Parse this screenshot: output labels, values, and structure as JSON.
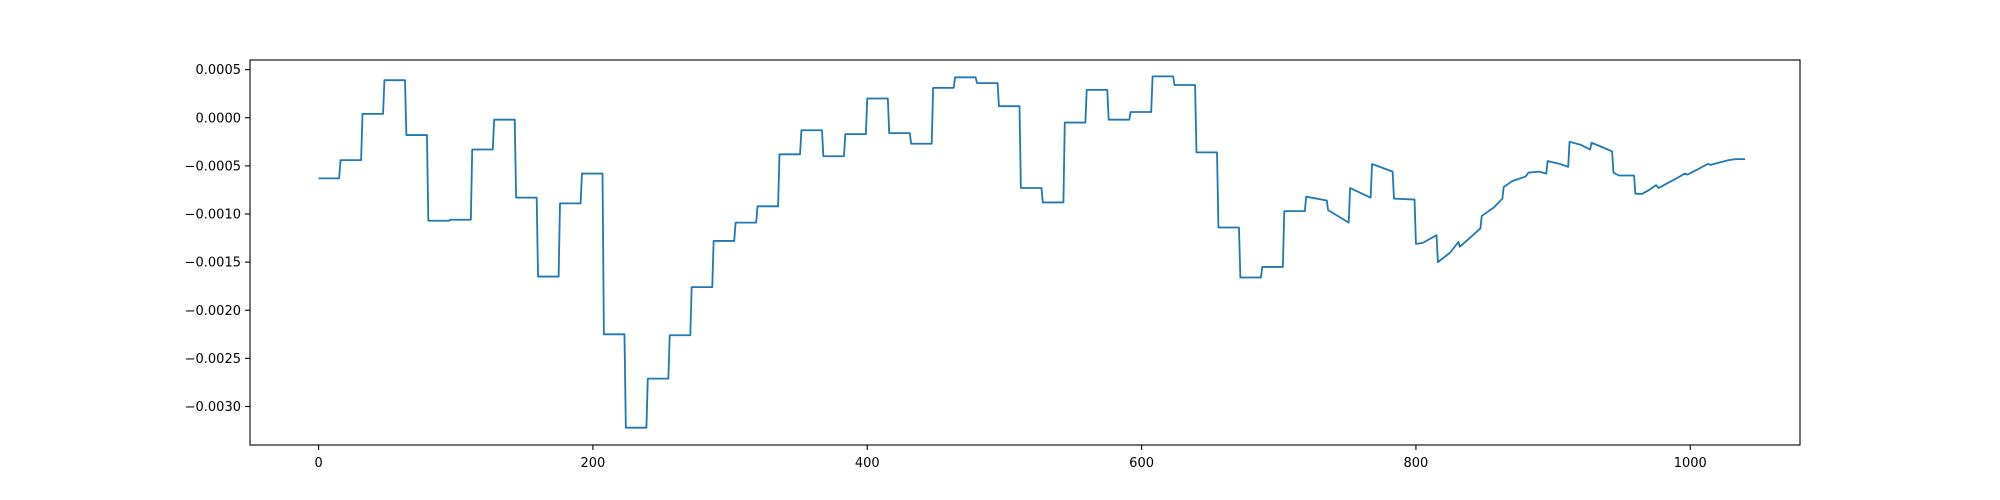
{
  "chart_data": {
    "type": "line",
    "title": "",
    "xlabel": "",
    "ylabel": "",
    "xlim": [
      -50,
      1080
    ],
    "ylim": [
      -0.0034,
      0.0006
    ],
    "xticks": [
      0,
      200,
      400,
      600,
      800,
      1000
    ],
    "xtick_labels": [
      "0",
      "200",
      "400",
      "600",
      "800",
      "1000"
    ],
    "yticks": [
      0.0005,
      0.0,
      -0.0005,
      -0.001,
      -0.0015,
      -0.002,
      -0.0025,
      -0.003
    ],
    "ytick_labels": [
      "0.0005",
      "0.0000",
      "−0.0005",
      "−0.0010",
      "−0.0015",
      "−0.0020",
      "−0.0025",
      "−0.0030"
    ],
    "grid": false,
    "series": [
      {
        "color": "#1f77b4",
        "points": [
          [
            0,
            -0.00063
          ],
          [
            15,
            -0.00063
          ],
          [
            16,
            -0.00044
          ],
          [
            31,
            -0.00044
          ],
          [
            32,
            4e-05
          ],
          [
            47,
            4e-05
          ],
          [
            48,
            0.00039
          ],
          [
            63,
            0.00039
          ],
          [
            64,
            -0.00018
          ],
          [
            79,
            -0.00018
          ],
          [
            80,
            -0.00107
          ],
          [
            95,
            -0.00107
          ],
          [
            96,
            -0.00106
          ],
          [
            111,
            -0.00106
          ],
          [
            112,
            -0.00033
          ],
          [
            127,
            -0.00033
          ],
          [
            128,
            -2e-05
          ],
          [
            143,
            -2e-05
          ],
          [
            144,
            -0.00083
          ],
          [
            159,
            -0.00083
          ],
          [
            160,
            -0.00165
          ],
          [
            175,
            -0.00165
          ],
          [
            176,
            -0.00089
          ],
          [
            191,
            -0.00089
          ],
          [
            192,
            -0.00058
          ],
          [
            207,
            -0.00058
          ],
          [
            208,
            -0.00225
          ],
          [
            223,
            -0.00225
          ],
          [
            224,
            -0.00322
          ],
          [
            239,
            -0.00322
          ],
          [
            240,
            -0.00271
          ],
          [
            255,
            -0.00271
          ],
          [
            256,
            -0.00226
          ],
          [
            271,
            -0.00226
          ],
          [
            272,
            -0.00176
          ],
          [
            287,
            -0.00176
          ],
          [
            288,
            -0.00128
          ],
          [
            303,
            -0.00128
          ],
          [
            304,
            -0.00109
          ],
          [
            319,
            -0.00109
          ],
          [
            320,
            -0.00092
          ],
          [
            335,
            -0.00092
          ],
          [
            336,
            -0.00038
          ],
          [
            351,
            -0.00038
          ],
          [
            352,
            -0.00013
          ],
          [
            367,
            -0.00013
          ],
          [
            368,
            -0.0004
          ],
          [
            383,
            -0.0004
          ],
          [
            384,
            -0.00017
          ],
          [
            399,
            -0.00017
          ],
          [
            400,
            0.0002
          ],
          [
            415,
            0.0002
          ],
          [
            416,
            -0.00016
          ],
          [
            431,
            -0.00016
          ],
          [
            432,
            -0.00027
          ],
          [
            447,
            -0.00027
          ],
          [
            448,
            0.00031
          ],
          [
            463,
            0.00031
          ],
          [
            464,
            0.00042
          ],
          [
            479,
            0.00042
          ],
          [
            480,
            0.00036
          ],
          [
            495,
            0.00036
          ],
          [
            496,
            0.00012
          ],
          [
            511,
            0.00012
          ],
          [
            512,
            -0.00073
          ],
          [
            527,
            -0.00073
          ],
          [
            528,
            -0.00088
          ],
          [
            543,
            -0.00088
          ],
          [
            544,
            -5e-05
          ],
          [
            559,
            -5e-05
          ],
          [
            560,
            0.00029
          ],
          [
            575,
            0.00029
          ],
          [
            576,
            -2e-05
          ],
          [
            591,
            -2e-05
          ],
          [
            592,
            6e-05
          ],
          [
            607,
            6e-05
          ],
          [
            608,
            0.00043
          ],
          [
            623,
            0.00043
          ],
          [
            624,
            0.00034
          ],
          [
            639,
            0.00034
          ],
          [
            640,
            -0.00036
          ],
          [
            655,
            -0.00036
          ],
          [
            656,
            -0.00114
          ],
          [
            671,
            -0.00114
          ],
          [
            672,
            -0.00166
          ],
          [
            687,
            -0.00166
          ],
          [
            688,
            -0.00155
          ],
          [
            703,
            -0.00155
          ],
          [
            704,
            -0.00097
          ],
          [
            719,
            -0.00097
          ],
          [
            720,
            -0.00082
          ],
          [
            735,
            -0.00086
          ],
          [
            736,
            -0.00096
          ],
          [
            751,
            -0.00109
          ],
          [
            752,
            -0.00073
          ],
          [
            767,
            -0.00083
          ],
          [
            768,
            -0.00048
          ],
          [
            783,
            -0.00056
          ],
          [
            784,
            -0.00084
          ],
          [
            799,
            -0.00085
          ],
          [
            800,
            -0.00131
          ],
          [
            805,
            -0.0013
          ],
          [
            815,
            -0.00122
          ],
          [
            816,
            -0.0015
          ],
          [
            825,
            -0.0014
          ],
          [
            831,
            -0.00129
          ],
          [
            832,
            -0.00134
          ],
          [
            840,
            -0.00124
          ],
          [
            847,
            -0.00115
          ],
          [
            848,
            -0.00102
          ],
          [
            857,
            -0.00093
          ],
          [
            863,
            -0.00084
          ],
          [
            864,
            -0.00072
          ],
          [
            870,
            -0.00066
          ],
          [
            880,
            -0.00061
          ],
          [
            882,
            -0.00057
          ],
          [
            890,
            -0.00056
          ],
          [
            895,
            -0.00058
          ],
          [
            896,
            -0.00045
          ],
          [
            905,
            -0.00048
          ],
          [
            911,
            -0.00051
          ],
          [
            912,
            -0.00025
          ],
          [
            920,
            -0.00028
          ],
          [
            927,
            -0.00033
          ],
          [
            928,
            -0.00026
          ],
          [
            935,
            -0.0003
          ],
          [
            943,
            -0.00035
          ],
          [
            944,
            -0.00057
          ],
          [
            948,
            -0.0006
          ],
          [
            959,
            -0.0006
          ],
          [
            960,
            -0.00079
          ],
          [
            965,
            -0.00079
          ],
          [
            970,
            -0.00075
          ],
          [
            975,
            -0.0007
          ],
          [
            977,
            -0.00073
          ],
          [
            982,
            -0.00069
          ],
          [
            990,
            -0.00063
          ],
          [
            996,
            -0.00058
          ],
          [
            998,
            -0.00059
          ],
          [
            1005,
            -0.00054
          ],
          [
            1010,
            -0.0005
          ],
          [
            1013,
            -0.00048
          ],
          [
            1015,
            -0.00049
          ],
          [
            1020,
            -0.00047
          ],
          [
            1028,
            -0.00044
          ],
          [
            1033,
            -0.00043
          ],
          [
            1040,
            -0.00043
          ]
        ]
      }
    ]
  }
}
